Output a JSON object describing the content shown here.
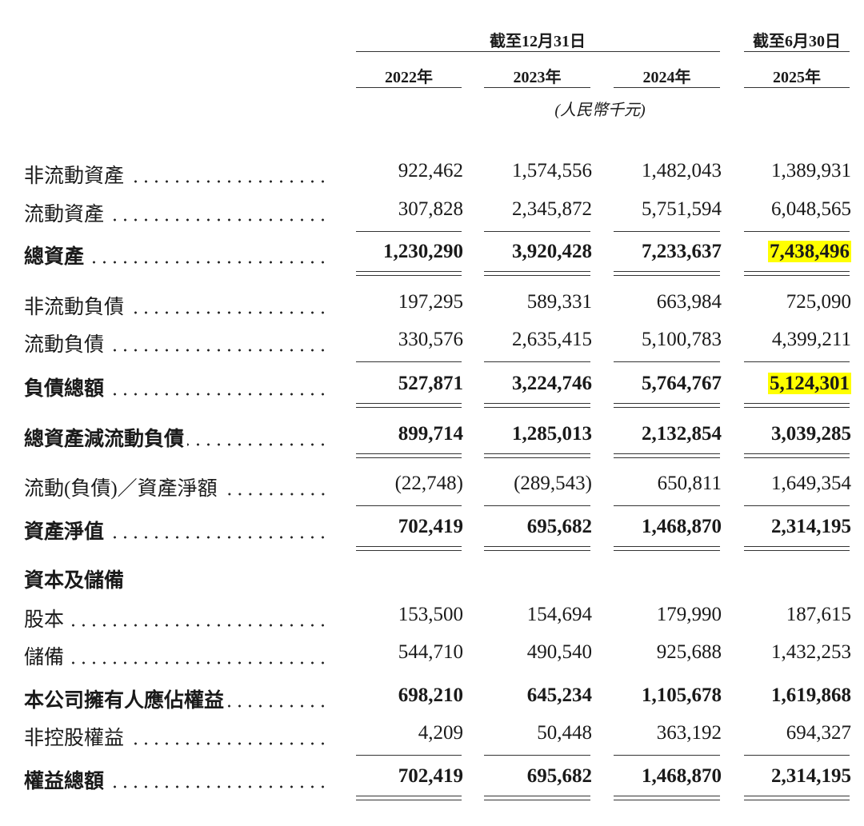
{
  "header": {
    "groups": [
      "截至12月31日",
      "截至6月30日"
    ],
    "years": [
      "2022年",
      "2023年",
      "2024年",
      "2025年"
    ],
    "unit": "(人民幣千元)"
  },
  "highlight_color": "#ffff00",
  "table": {
    "rows": [
      {
        "label": "非流動資產",
        "values": [
          "922,462",
          "1,574,556",
          "1,482,043",
          "1,389,931"
        ]
      },
      {
        "label": "流動資產",
        "values": [
          "307,828",
          "2,345,872",
          "5,751,594",
          "6,048,565"
        ],
        "rule": "single"
      },
      {
        "label": "總資產",
        "values": [
          "1,230,290",
          "3,920,428",
          "7,233,637",
          "7,438,496"
        ],
        "bold": true,
        "rule": "double",
        "highlight": [
          3
        ]
      },
      {
        "label": "非流動負債",
        "values": [
          "197,295",
          "589,331",
          "663,984",
          "725,090"
        ]
      },
      {
        "label": "流動負債",
        "values": [
          "330,576",
          "2,635,415",
          "5,100,783",
          "4,399,211"
        ],
        "rule": "single"
      },
      {
        "label": "負債總額",
        "values": [
          "527,871",
          "3,224,746",
          "5,764,767",
          "5,124,301"
        ],
        "bold": true,
        "rule": "double",
        "highlight": [
          3
        ]
      },
      {
        "label": "總資產減流動負債",
        "values": [
          "899,714",
          "1,285,013",
          "2,132,854",
          "3,039,285"
        ],
        "bold": true,
        "rule": "double"
      },
      {
        "label": "流動(負債)／資產淨額",
        "values": [
          "(22,748)",
          "(289,543)",
          "650,811",
          "1,649,354"
        ],
        "rule": "single"
      },
      {
        "label": "資產淨值",
        "values": [
          "702,419",
          "695,682",
          "1,468,870",
          "2,314,195"
        ],
        "bold": true,
        "rule": "double"
      },
      {
        "label": "資本及儲備",
        "bold": true
      },
      {
        "label": "股本",
        "values": [
          "153,500",
          "154,694",
          "179,990",
          "187,615"
        ]
      },
      {
        "label": "儲備",
        "values": [
          "544,710",
          "490,540",
          "925,688",
          "1,432,253"
        ]
      },
      {
        "label": "本公司擁有人應佔權益",
        "values": [
          "698,210",
          "645,234",
          "1,105,678",
          "1,619,868"
        ],
        "bold": true
      },
      {
        "label": "非控股權益",
        "values": [
          "4,209",
          "50,448",
          "363,192",
          "694,327"
        ],
        "rule": "single"
      },
      {
        "label": "權益總額",
        "values": [
          "702,419",
          "695,682",
          "1,468,870",
          "2,314,195"
        ],
        "bold": true,
        "rule": "double"
      }
    ]
  }
}
